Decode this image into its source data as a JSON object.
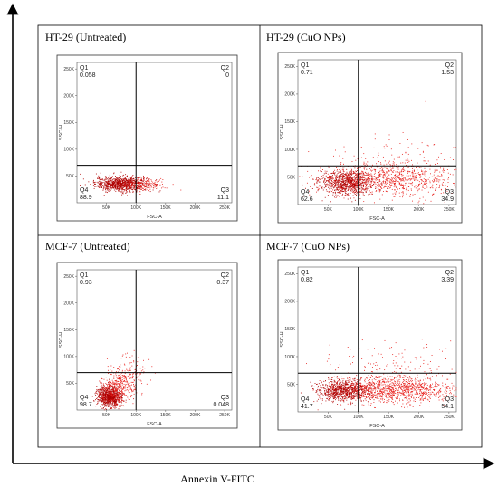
{
  "x_axis_title": "Annexin V-FITC",
  "colors": {
    "dots": "#e8201c",
    "dots_dense": "#b00000",
    "frame": "#000000"
  },
  "chart_data": [
    {
      "type": "scatter",
      "title": "HT-29 (Untreated)",
      "xlabel": "FSC-A",
      "ylabel": "SSC-H",
      "xlim": [
        0,
        262144
      ],
      "ylim": [
        0,
        262144
      ],
      "x_ticks": [
        "50K",
        "100K",
        "150K",
        "200K",
        "250K"
      ],
      "y_ticks": [
        "50K",
        "100K",
        "150K",
        "200K",
        "250K"
      ],
      "gate": {
        "x": 100000,
        "y": 70000
      },
      "quadrants": [
        {
          "name": "Q1",
          "value": "0.058"
        },
        {
          "name": "Q2",
          "value": "0"
        },
        {
          "name": "Q3",
          "value": "11.1"
        },
        {
          "name": "Q4",
          "value": "88.9"
        }
      ],
      "clusters": [
        {
          "cx": 75000,
          "cy": 35000,
          "sx": 22000,
          "sy": 7000,
          "n": 900,
          "color": "dots_dense"
        },
        {
          "cx": 115000,
          "cy": 34000,
          "sx": 18000,
          "sy": 6000,
          "n": 160,
          "color": "dots"
        }
      ]
    },
    {
      "type": "scatter",
      "title": "HT-29 (CuO NPs)",
      "xlabel": "FSC-A",
      "ylabel": "SSC-H",
      "xlim": [
        0,
        262144
      ],
      "ylim": [
        0,
        262144
      ],
      "x_ticks": [
        "50K",
        "100K",
        "150K",
        "200K",
        "250K"
      ],
      "y_ticks": [
        "50K",
        "100K",
        "150K",
        "200K",
        "250K"
      ],
      "gate": {
        "x": 100000,
        "y": 70000
      },
      "quadrants": [
        {
          "name": "Q1",
          "value": "0.71"
        },
        {
          "name": "Q2",
          "value": "1.53"
        },
        {
          "name": "Q3",
          "value": "34.9"
        },
        {
          "name": "Q4",
          "value": "62.6"
        }
      ],
      "clusters": [
        {
          "cx": 80000,
          "cy": 40000,
          "sx": 22000,
          "sy": 11000,
          "n": 850,
          "color": "dots_dense"
        },
        {
          "cx": 150000,
          "cy": 45000,
          "sx": 60000,
          "sy": 16000,
          "n": 900,
          "color": "dots"
        },
        {
          "cx": 170000,
          "cy": 85000,
          "sx": 55000,
          "sy": 25000,
          "n": 120,
          "color": "dots"
        }
      ]
    },
    {
      "type": "scatter",
      "title": "MCF-7 (Untreated)",
      "xlabel": "FSC-A",
      "ylabel": "SSC-H",
      "xlim": [
        0,
        262144
      ],
      "ylim": [
        0,
        262144
      ],
      "x_ticks": [
        "50K",
        "100K",
        "150K",
        "200K",
        "250K"
      ],
      "y_ticks": [
        "50K",
        "100K",
        "150K",
        "200K",
        "250K"
      ],
      "gate": {
        "x": 100000,
        "y": 70000
      },
      "quadrants": [
        {
          "name": "Q1",
          "value": "0.93"
        },
        {
          "name": "Q2",
          "value": "0.37"
        },
        {
          "name": "Q3",
          "value": "0.048"
        },
        {
          "name": "Q4",
          "value": "98.7"
        }
      ],
      "clusters": [
        {
          "cx": 55000,
          "cy": 25000,
          "sx": 10000,
          "sy": 10000,
          "n": 900,
          "color": "dots_dense"
        },
        {
          "cx": 70000,
          "cy": 45000,
          "sx": 14000,
          "sy": 16000,
          "n": 380,
          "color": "dots"
        },
        {
          "cx": 95000,
          "cy": 70000,
          "sx": 14000,
          "sy": 20000,
          "n": 90,
          "color": "dots"
        }
      ]
    },
    {
      "type": "scatter",
      "title": "MCF-7 (CuO NPs)",
      "xlabel": "FSC-A",
      "ylabel": "SSC-H",
      "xlim": [
        0,
        262144
      ],
      "ylim": [
        0,
        262144
      ],
      "x_ticks": [
        "50K",
        "100K",
        "150K",
        "200K",
        "250K"
      ],
      "y_ticks": [
        "50K",
        "100K",
        "150K",
        "200K",
        "250K"
      ],
      "gate": {
        "x": 100000,
        "y": 70000
      },
      "quadrants": [
        {
          "name": "Q1",
          "value": "0.82"
        },
        {
          "name": "Q2",
          "value": "3.39"
        },
        {
          "name": "Q3",
          "value": "54.1"
        },
        {
          "name": "Q4",
          "value": "41.7"
        }
      ],
      "clusters": [
        {
          "cx": 75000,
          "cy": 38000,
          "sx": 22000,
          "sy": 10000,
          "n": 800,
          "color": "dots_dense"
        },
        {
          "cx": 165000,
          "cy": 40000,
          "sx": 50000,
          "sy": 12000,
          "n": 1100,
          "color": "dots"
        },
        {
          "cx": 160000,
          "cy": 80000,
          "sx": 55000,
          "sy": 22000,
          "n": 160,
          "color": "dots"
        }
      ]
    }
  ]
}
